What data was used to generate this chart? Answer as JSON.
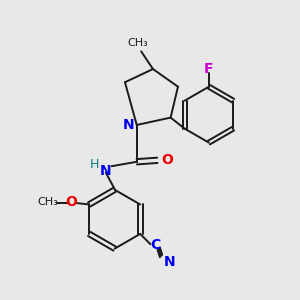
{
  "background_color": "#e8e8e8",
  "bond_color": "#1a1a1a",
  "bond_width": 1.4,
  "atom_colors": {
    "N": "#0000ee",
    "O": "#ee0000",
    "F": "#cc00cc",
    "C": "#1a1a1a",
    "H": "#008080",
    "CN_label": "#0000ee"
  },
  "figsize": [
    3.0,
    3.0
  ],
  "dpi": 100
}
